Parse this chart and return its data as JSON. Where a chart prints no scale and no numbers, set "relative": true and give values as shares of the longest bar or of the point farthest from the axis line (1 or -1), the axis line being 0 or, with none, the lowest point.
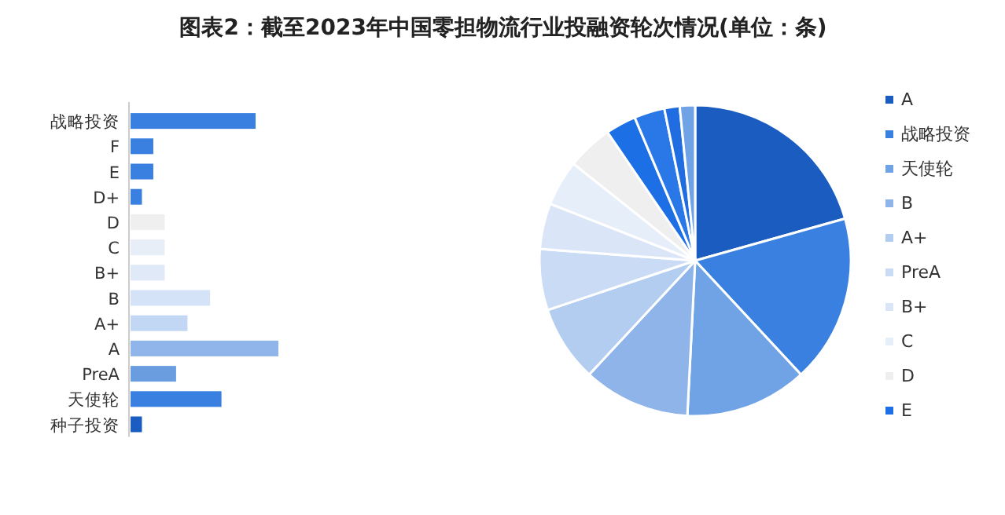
{
  "chart_data": [
    {
      "type": "bar",
      "title": "图表2：截至2023年中国零担物流行业投融资轮次情况(单位：条)",
      "orientation": "horizontal",
      "relative": true,
      "categories": [
        "战略投资",
        "F",
        "E",
        "D+",
        "D",
        "C",
        "B+",
        "B",
        "A+",
        "A",
        "PreA",
        "天使轮",
        "种子投资"
      ],
      "values": [
        0.846,
        0.154,
        0.154,
        0.077,
        0.231,
        0.231,
        0.231,
        0.538,
        0.385,
        1,
        0.308,
        0.615,
        0.077
      ],
      "colors": [
        "#3a80e0",
        "#3a80e0",
        "#3a80e0",
        "#3a80e0",
        "#efefef",
        "#e8eef8",
        "#e0e9f7",
        "#d4e3f7",
        "#c2d7f3",
        "#8fb5ea",
        "#6a9de0",
        "#3a80e0",
        "#1a5cc0"
      ]
    },
    {
      "type": "pie",
      "legend": "right",
      "categories": [
        "A",
        "战略投资",
        "天使轮",
        "B",
        "A+",
        "PreA",
        "B+",
        "C",
        "D",
        "E",
        null,
        null,
        null
      ],
      "values": [
        20.64,
        17.46,
        12.7,
        11.11,
        7.94,
        6.35,
        4.76,
        4.76,
        4.76,
        3.17,
        3.17,
        1.59,
        1.59
      ],
      "colors": [
        "#1a5cc0",
        "#3a80e0",
        "#6fa3e6",
        "#8fb4ea",
        "#b3cdf1",
        "#c9dbf5",
        "#dae6f8",
        "#e6eefa",
        "#efefef",
        "#1d6fe6",
        "#2a78e8",
        "#1f6de0",
        "#6fa3e6"
      ]
    }
  ]
}
